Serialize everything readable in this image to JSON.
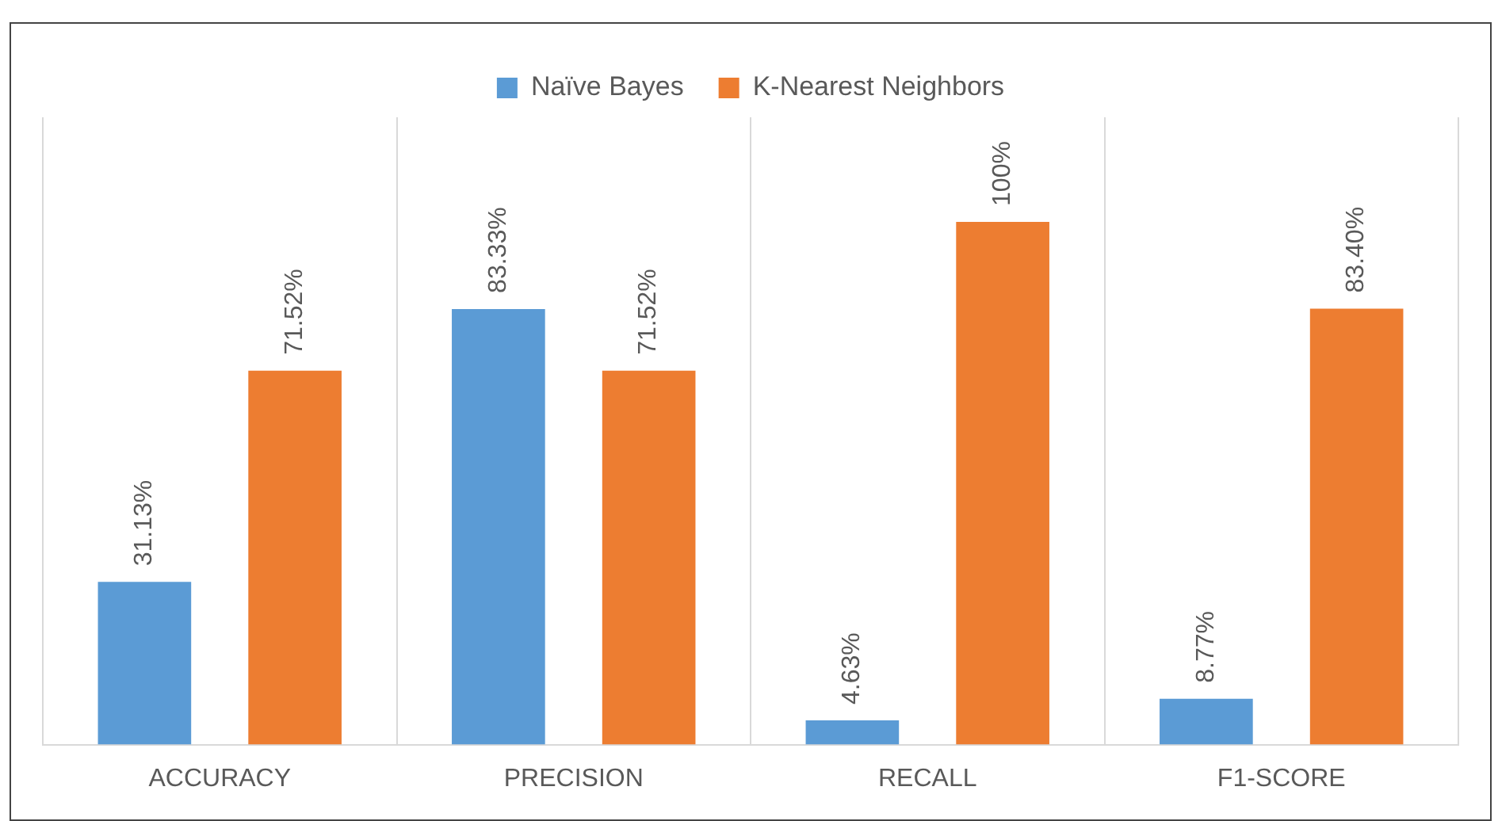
{
  "chart_data": {
    "type": "bar",
    "categories": [
      "ACCURACY",
      "PRECISION",
      "RECALL",
      "F1-SCORE"
    ],
    "series": [
      {
        "name": "Naïve Bayes",
        "color": "#5b9bd5",
        "values": [
          31.13,
          83.33,
          4.63,
          8.77
        ],
        "value_labels": [
          "31.13%",
          "83.33%",
          "4.63%",
          "8.77%"
        ]
      },
      {
        "name": "K-Nearest Neighbors",
        "color": "#ed7d31",
        "values": [
          71.52,
          71.52,
          100,
          83.4
        ],
        "value_labels": [
          "71.52%",
          "71.52%",
          "100%",
          "83.40%"
        ]
      }
    ],
    "legend": "top",
    "grid": "x",
    "tick_labels": "x"
  }
}
